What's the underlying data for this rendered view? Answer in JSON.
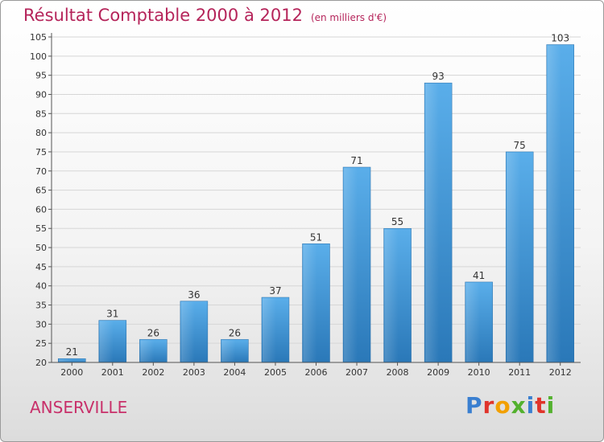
{
  "header": {
    "title": "Résultat Comptable 2000 à 2012",
    "subtitle": "(en milliers d'€)"
  },
  "footer": {
    "commune": "ANSERVILLE",
    "logo": "Proxiti"
  },
  "colors": {
    "title": "#b5245a",
    "bar_top": "#5aaeea",
    "bar_bottom": "#2a78b8",
    "grid": "#d6d6d6"
  },
  "chart_data": {
    "type": "bar",
    "title": "Résultat Comptable 2000 à 2012",
    "subtitle": "(en milliers d'€)",
    "xlabel": "",
    "ylabel": "",
    "categories": [
      "2000",
      "2001",
      "2002",
      "2003",
      "2004",
      "2005",
      "2006",
      "2007",
      "2008",
      "2009",
      "2010",
      "2011",
      "2012"
    ],
    "values": [
      21,
      31,
      26,
      36,
      26,
      37,
      51,
      71,
      55,
      93,
      41,
      75,
      103
    ],
    "ylim": [
      20,
      105
    ],
    "yticks": [
      20,
      25,
      30,
      35,
      40,
      45,
      50,
      55,
      60,
      65,
      70,
      75,
      80,
      85,
      90,
      95,
      100,
      105
    ],
    "grid": true,
    "data_labels": true
  }
}
